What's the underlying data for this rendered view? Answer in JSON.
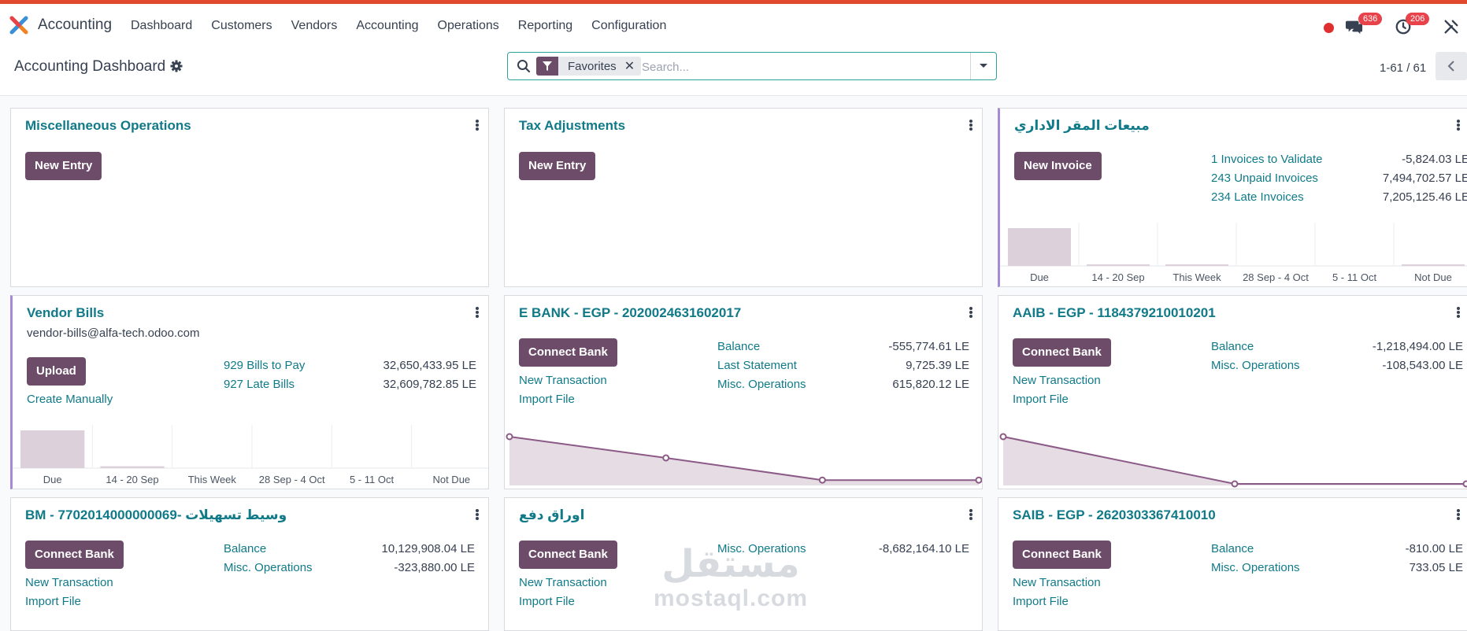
{
  "app": {
    "name": "Accounting",
    "menu": [
      "Dashboard",
      "Customers",
      "Vendors",
      "Accounting",
      "Operations",
      "Reporting",
      "Configuration"
    ],
    "badges": {
      "messages": "636",
      "activities": "206"
    },
    "colors": {
      "accent": "#6d4c6a",
      "link": "#107a88",
      "top_strip": "#e0492d"
    }
  },
  "control": {
    "title": "Accounting Dashboard",
    "facet": "Favorites",
    "search_placeholder": "Search...",
    "pager": "1-61 / 61"
  },
  "cards": {
    "misc": {
      "title": "Miscellaneous Operations",
      "button": "New Entry"
    },
    "tax": {
      "title": "Tax Adjustments",
      "button": "New Entry"
    },
    "sales": {
      "title": "مبيعات المقر الاداري",
      "button": "New Invoice",
      "stats": [
        {
          "label": "1 Invoices to Validate",
          "value": "-5,824.03 LE"
        },
        {
          "label": "243 Unpaid Invoices",
          "value": "7,494,702.57 LE"
        },
        {
          "label": "234 Late Invoices",
          "value": "7,205,125.46 LE"
        }
      ]
    },
    "vendor": {
      "title": "Vendor Bills",
      "email": "vendor-bills@alfa-tech.odoo.com",
      "button": "Upload",
      "create": "Create Manually",
      "stats": [
        {
          "label": "929 Bills to Pay",
          "value": "32,650,433.95 LE"
        },
        {
          "label": "927 Late Bills",
          "value": "32,609,782.85 LE"
        }
      ]
    },
    "ebank": {
      "title": "E BANK - EGP - 2020024631602017",
      "button": "Connect Bank",
      "links": [
        "New Transaction",
        "Import File"
      ],
      "stats": [
        {
          "label": "Balance",
          "value": "-555,774.61 LE"
        },
        {
          "label": "Last Statement",
          "value": "9,725.39 LE"
        },
        {
          "label": "Misc. Operations",
          "value": "615,820.12 LE"
        }
      ]
    },
    "aaib": {
      "title": "AAIB - EGP - 1184379210010201",
      "button": "Connect Bank",
      "links": [
        "New Transaction",
        "Import File"
      ],
      "stats": [
        {
          "label": "Balance",
          "value": "-1,218,494.00 LE"
        },
        {
          "label": "Misc. Operations",
          "value": "-108,543.00 LE"
        }
      ]
    },
    "bm": {
      "title": "BM - 7702014000000069- وسيط تسهيلات",
      "button": "Connect Bank",
      "links": [
        "New Transaction",
        "Import File"
      ],
      "stats": [
        {
          "label": "Balance",
          "value": "10,129,908.04 LE"
        },
        {
          "label": "Misc. Operations",
          "value": "-323,880.00 LE"
        }
      ]
    },
    "awraq": {
      "title": "اوراق دفع",
      "button": "Connect Bank",
      "links": [
        "New Transaction",
        "Import File"
      ],
      "stats": [
        {
          "label": "Misc. Operations",
          "value": "-8,682,164.10 LE"
        }
      ]
    },
    "saib": {
      "title": "SAIB - EGP - 2620303367410010",
      "button": "Connect Bank",
      "links": [
        "New Transaction",
        "Import File"
      ],
      "stats": [
        {
          "label": "Balance",
          "value": "-810.00 LE"
        },
        {
          "label": "Misc. Operations",
          "value": "733.05 LE"
        }
      ]
    }
  },
  "chart_data": [
    {
      "type": "bar",
      "card": "sales",
      "categories": [
        "Due",
        "14 - 20 Sep",
        "This Week",
        "28 Sep - 4 Oct",
        "5 - 11 Oct",
        "Not Due"
      ],
      "values": [
        1.0,
        0.02,
        0.02,
        0.0,
        0.0,
        0.02
      ],
      "color": "#dcd1da"
    },
    {
      "type": "bar",
      "card": "vendor",
      "categories": [
        "Due",
        "14 - 20 Sep",
        "This Week",
        "28 Sep - 4 Oct",
        "5 - 11 Oct",
        "Not Due"
      ],
      "values": [
        1.0,
        0.05,
        0.0,
        0.0,
        0.0,
        0.0
      ],
      "color": "#dcd1da"
    },
    {
      "type": "area",
      "card": "ebank",
      "x": [
        0,
        1,
        2,
        3
      ],
      "values": [
        1.0,
        0.55,
        0.08,
        0.08
      ],
      "color": "#8c5a86"
    },
    {
      "type": "area",
      "card": "aaib",
      "x": [
        0,
        1,
        2
      ],
      "values": [
        1.0,
        0.0,
        0.0
      ],
      "color": "#8c5a86"
    }
  ],
  "watermark": {
    "arabic": "مستقل",
    "latin": "mostaql.com"
  }
}
